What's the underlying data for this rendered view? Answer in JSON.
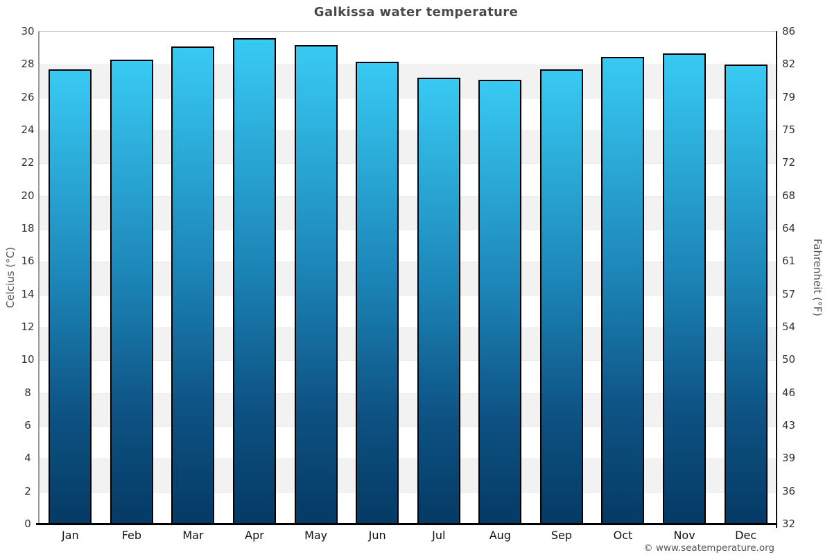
{
  "title": "Galkissa water temperature",
  "footer": {
    "text": "© www.seatemperature.org"
  },
  "chart_data": {
    "type": "bar",
    "title": "Galkissa water temperature",
    "categories": [
      "Jan",
      "Feb",
      "Mar",
      "Apr",
      "May",
      "Jun",
      "Jul",
      "Aug",
      "Sep",
      "Oct",
      "Nov",
      "Dec"
    ],
    "values": [
      27.7,
      28.3,
      29.1,
      29.6,
      29.2,
      28.2,
      27.2,
      27.1,
      27.7,
      28.5,
      28.7,
      28.0
    ],
    "series": [
      {
        "name": "Water temperature (°C)",
        "values": [
          27.7,
          28.3,
          29.1,
          29.6,
          29.2,
          28.2,
          27.2,
          27.1,
          27.7,
          28.5,
          28.7,
          28.0
        ]
      }
    ],
    "xlabel": "",
    "ylabel_left": "Celcius (°C)",
    "ylabel_right": "Fahrenheit (°F)",
    "ylim": [
      0,
      30
    ],
    "ytick_step_celsius": 2,
    "yticks_celsius": [
      0,
      2,
      4,
      6,
      8,
      10,
      12,
      14,
      16,
      18,
      20,
      22,
      24,
      26,
      28,
      30
    ],
    "yticks_fahrenheit": [
      32,
      36,
      39,
      43,
      46,
      50,
      54,
      57,
      61,
      64,
      68,
      72,
      75,
      79,
      82,
      86
    ],
    "legend": "none",
    "grid": "alternating horizontal bands every 2°C",
    "colors": {
      "bar_gradient_top": "#38CAF3",
      "bar_gradient_upper_mid": "#1C86B8",
      "bar_gradient_lower_mid": "#0D5283",
      "bar_gradient_bottom": "#053A64",
      "bar_border": "#000000",
      "band_gray": "#F2F2F2",
      "band_white": "#FFFFFF",
      "grid_line": "#E8E8E8",
      "left_axis": "#999999",
      "right_axis": "#111111",
      "bottom_axis": "#000000",
      "title_text": "#4A4A4A",
      "tick_text": "#333333",
      "month_text": "#111111",
      "axis_title_text": "#555555",
      "footer_text": "#555555"
    }
  }
}
